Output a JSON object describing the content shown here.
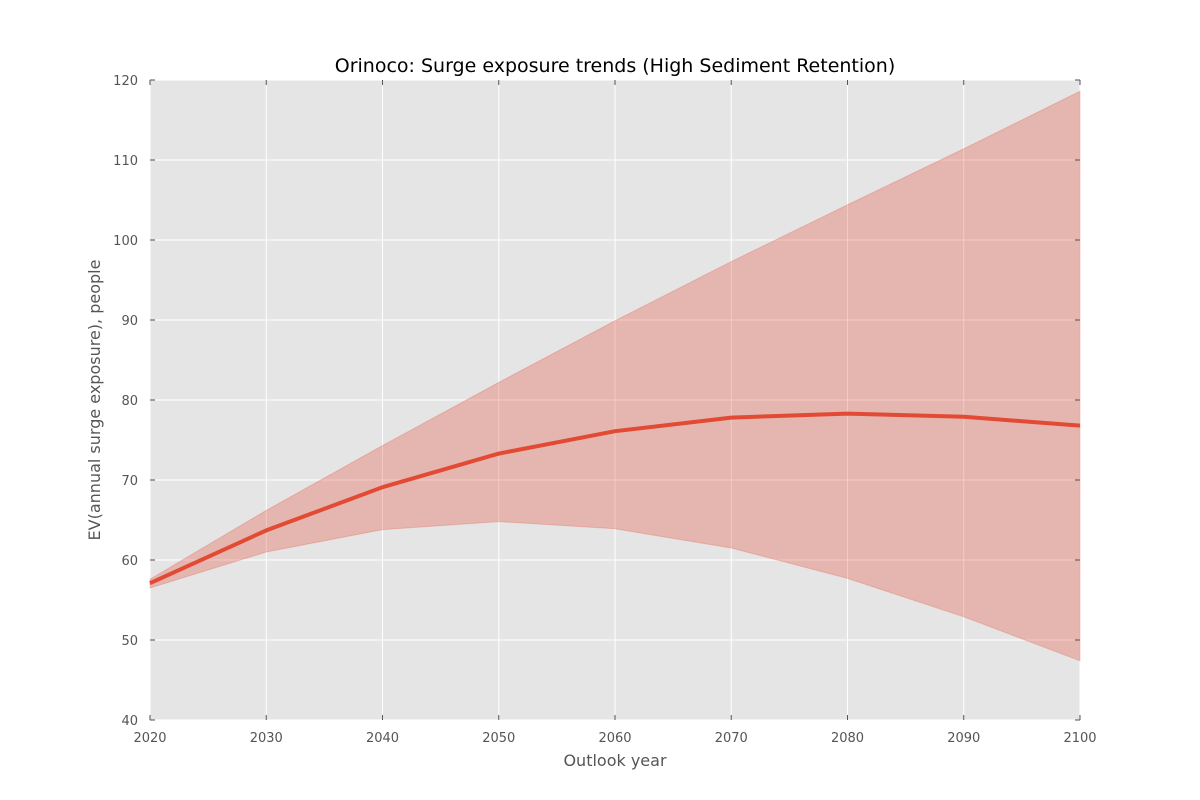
{
  "chart_data": {
    "type": "line",
    "title": "Orinoco: Surge exposure trends (High Sediment Retention)",
    "xlabel": "Outlook year",
    "ylabel": "EV(annual surge exposure), people",
    "xlim": [
      2020,
      2100
    ],
    "ylim": [
      40,
      120
    ],
    "x_ticks": [
      2020,
      2030,
      2040,
      2050,
      2060,
      2070,
      2080,
      2090,
      2100
    ],
    "y_ticks": [
      40,
      50,
      60,
      70,
      80,
      90,
      100,
      110,
      120
    ],
    "grid": true,
    "legend": "none",
    "x": [
      2020,
      2030,
      2040,
      2050,
      2060,
      2070,
      2080,
      2090,
      2100
    ],
    "series": [
      {
        "values": [
          57.1,
          63.7,
          69.1,
          73.3,
          76.1,
          77.8,
          78.3,
          77.9,
          76.8
        ],
        "lower": [
          56.5,
          61.0,
          63.8,
          64.8,
          63.9,
          61.5,
          57.7,
          52.9,
          47.4
        ],
        "upper": [
          57.6,
          66.2,
          74.3,
          82.2,
          89.9,
          97.3,
          104.4,
          111.4,
          118.6
        ],
        "color": "#e24a33",
        "band_color": "#e24a33"
      }
    ],
    "colors": {
      "plot_background": "#e5e5e5",
      "grid": "#ffffff",
      "text": "#555555"
    }
  }
}
